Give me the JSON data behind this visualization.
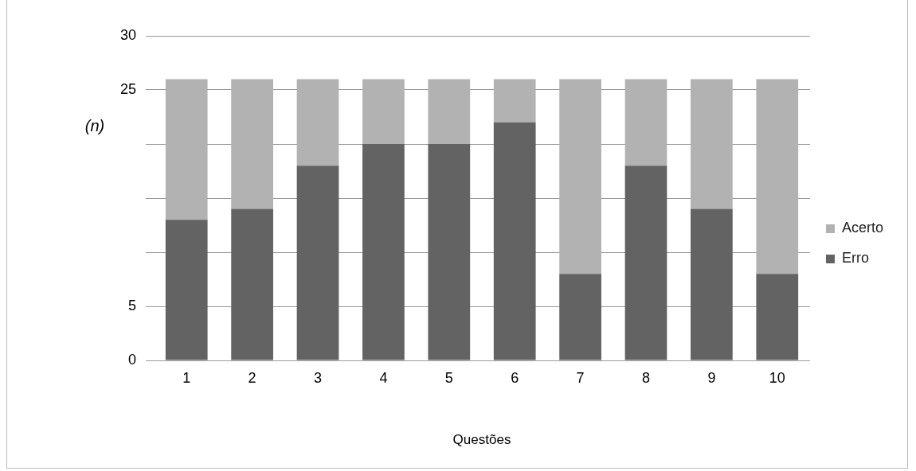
{
  "chart_data": {
    "type": "bar",
    "stacked": true,
    "xlabel": "Questões",
    "ylabel": "(n)",
    "categories": [
      "1",
      "2",
      "3",
      "4",
      "5",
      "6",
      "7",
      "8",
      "9",
      "10"
    ],
    "series": [
      {
        "name": "Erro",
        "color": "#636363",
        "values": [
          13,
          14,
          18,
          20,
          20,
          22,
          8,
          18,
          14,
          8
        ]
      },
      {
        "name": "Acerto",
        "color": "#b2b2b2",
        "values": [
          13,
          12,
          8,
          6,
          6,
          4,
          18,
          8,
          12,
          18
        ]
      }
    ],
    "ylim": [
      0,
      30
    ],
    "yticks": [
      0,
      5,
      {
        "value": 10,
        "label": null
      },
      {
        "value": 15,
        "label": null
      },
      {
        "value": 20,
        "label": null
      },
      25,
      30
    ],
    "grid": "y",
    "legend": "right"
  }
}
